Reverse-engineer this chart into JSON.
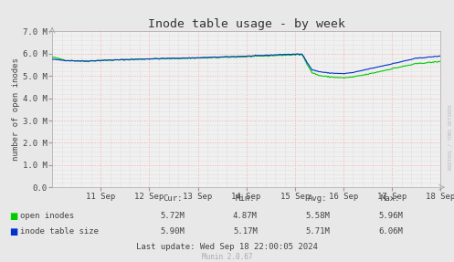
{
  "title": "Inode table usage - by week",
  "ylabel": "number of open inodes",
  "bg_color": "#e8e8e8",
  "plot_bg_color": "#f0f0f0",
  "ylim": [
    0,
    7000000
  ],
  "xticklabels": [
    "11 Sep",
    "12 Sep",
    "13 Sep",
    "14 Sep",
    "15 Sep",
    "16 Sep",
    "17 Sep",
    "18 Sep"
  ],
  "line_green_color": "#00cc00",
  "line_blue_color": "#0033cc",
  "legend_labels": [
    "open inodes",
    "inode table size"
  ],
  "footer_text": "Last update: Wed Sep 18 22:00:05 2024",
  "munin_text": "Munin 2.0.67",
  "rrdtool_text": "RRDTOOL / TOBI OETIKER",
  "table_headers": [
    "Cur:",
    "Min:",
    "Avg:",
    "Max:"
  ],
  "green_stats": [
    "5.72M",
    "4.87M",
    "5.58M",
    "5.96M"
  ],
  "blue_stats": [
    "5.90M",
    "5.17M",
    "5.71M",
    "6.06M"
  ]
}
